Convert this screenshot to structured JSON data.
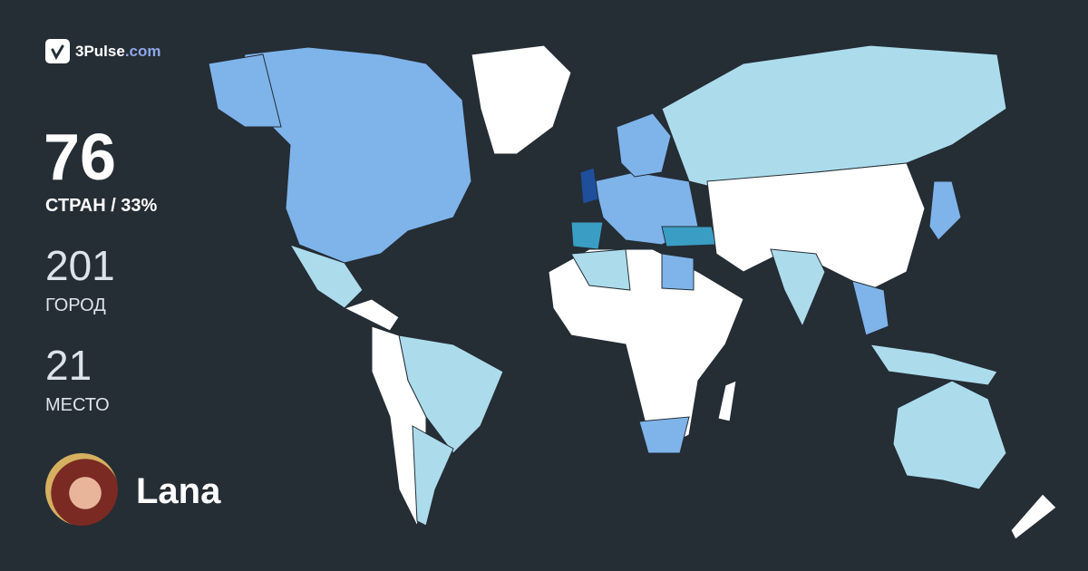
{
  "brand": {
    "name": "3Pulse",
    "domain": ".com",
    "icon": "check-pulse-icon"
  },
  "stats": {
    "countries": {
      "value": "76",
      "label": "СТРАН / 33%"
    },
    "cities": {
      "value": "201",
      "label": "ГОРОД"
    },
    "rank": {
      "value": "21",
      "label": "МЕСТО"
    }
  },
  "user": {
    "name": "Lana"
  },
  "colors": {
    "background": "#252d35",
    "unvisited": "#ffffff",
    "level1": "#acdcec",
    "level2": "#7eb4ea",
    "level3": "#3a9ec4",
    "level4": "#1f4e9a"
  }
}
